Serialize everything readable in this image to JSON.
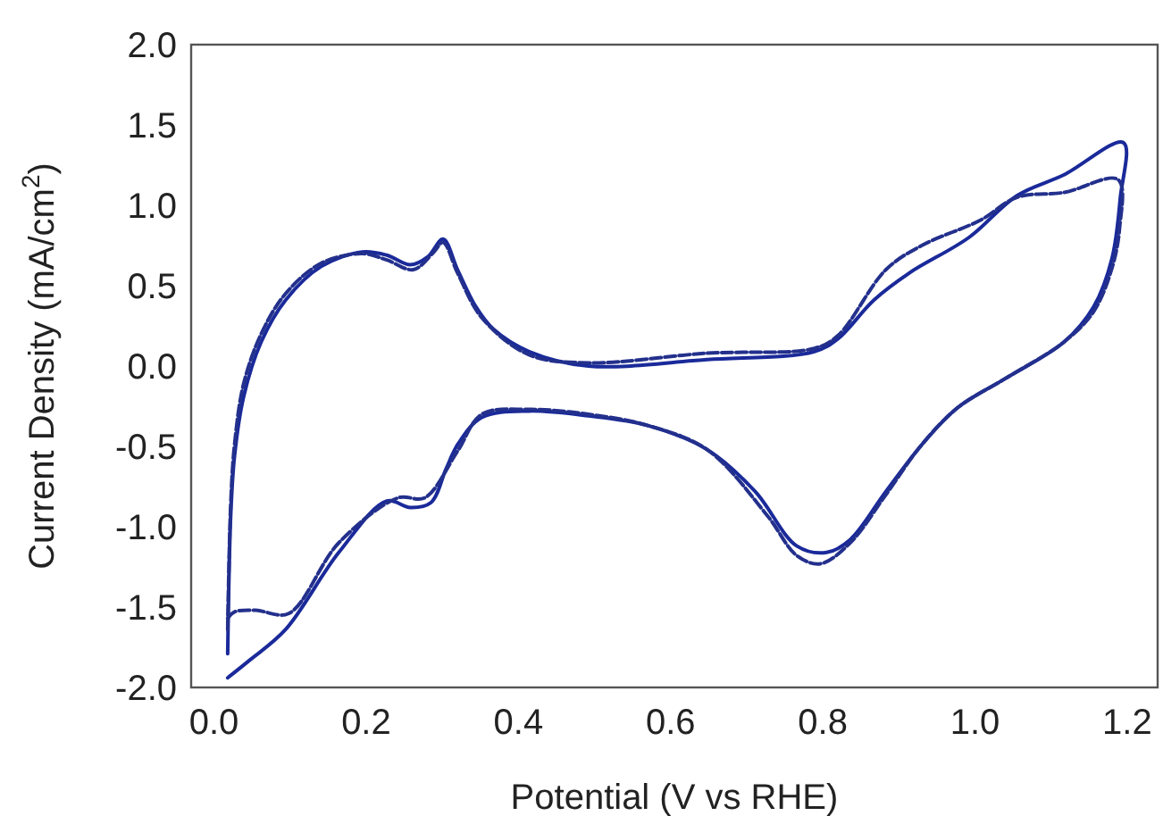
{
  "chart_data": {
    "type": "line",
    "xlabel": "Potential (V vs RHE)",
    "ylabel": "Current Density (mA/cm$^{2}$)",
    "xlim": [
      -0.03,
      1.24
    ],
    "ylim": [
      -2.0,
      2.0
    ],
    "xticks": [
      {
        "value": 0,
        "label": "0.0"
      },
      {
        "value": 0.2,
        "label": "0.2"
      },
      {
        "value": 0.4,
        "label": "0.4"
      },
      {
        "value": 0.6,
        "label": "0.6"
      },
      {
        "value": 0.8,
        "label": "0.8"
      },
      {
        "value": 1.0,
        "label": "1.0"
      },
      {
        "value": 1.2,
        "label": "1.2"
      }
    ],
    "yticks": [
      {
        "value": -2,
        "label": "-2.0"
      },
      {
        "value": -1.5,
        "label": "-1.5"
      },
      {
        "value": -1,
        "label": "-1.0"
      },
      {
        "value": -0.5,
        "label": "-0.5"
      },
      {
        "value": 0,
        "label": "0.0"
      },
      {
        "value": 0.5,
        "label": "0.5"
      },
      {
        "value": 1,
        "label": "1.0"
      },
      {
        "value": 1.5,
        "label": "1.5"
      },
      {
        "value": 2,
        "label": "2.0"
      }
    ],
    "grid": false,
    "marker": "none",
    "series": [
      {
        "color": "#1a2a9a",
        "line_style": "solid",
        "x": [
          0.018,
          0.022,
          0.027,
          0.039,
          0.062,
          0.094,
          0.141,
          0.195,
          0.227,
          0.258,
          0.281,
          0.301,
          0.32,
          0.344,
          0.367,
          0.414,
          0.492,
          0.648,
          0.789,
          0.82,
          0.867,
          0.914,
          0.992,
          1.055,
          1.117,
          1.195,
          1.191,
          1.18,
          1.156,
          1.117,
          1.039,
          0.977,
          0.93,
          0.883,
          0.836,
          0.805,
          0.766,
          0.711,
          0.648,
          0.57,
          0.492,
          0.414,
          0.352,
          0.32,
          0.305,
          0.285,
          0.258,
          0.227,
          0.164,
          0.094,
          0.047,
          0.018
        ],
        "values": [
          -1.79,
          -0.93,
          -0.56,
          -0.19,
          0.15,
          0.41,
          0.62,
          0.71,
          0.69,
          0.63,
          0.68,
          0.79,
          0.6,
          0.37,
          0.23,
          0.09,
          0.0,
          0.04,
          0.09,
          0.17,
          0.41,
          0.58,
          0.8,
          1.06,
          1.19,
          1.39,
          1.05,
          0.67,
          0.37,
          0.15,
          -0.08,
          -0.26,
          -0.49,
          -0.78,
          -1.08,
          -1.16,
          -1.12,
          -0.78,
          -0.52,
          -0.37,
          -0.31,
          -0.28,
          -0.32,
          -0.49,
          -0.64,
          -0.85,
          -0.88,
          -0.84,
          -1.16,
          -1.64,
          -1.83,
          -1.94
        ]
      },
      {
        "color": "#23308c",
        "line_style": "dashed",
        "x": [
          0.018,
          0.022,
          0.027,
          0.039,
          0.062,
          0.094,
          0.141,
          0.195,
          0.227,
          0.262,
          0.289,
          0.301,
          0.32,
          0.352,
          0.414,
          0.492,
          0.648,
          0.789,
          0.82,
          0.883,
          0.93,
          1.008,
          1.055,
          1.117,
          1.188,
          1.19,
          1.18,
          1.156,
          1.117,
          1.039,
          0.977,
          0.93,
          0.883,
          0.836,
          0.797,
          0.766,
          0.727,
          0.648,
          0.57,
          0.492,
          0.414,
          0.352,
          0.32,
          0.277,
          0.242,
          0.164,
          0.098,
          0.055,
          0.027,
          0.018
        ],
        "values": [
          -1.64,
          -0.86,
          -0.49,
          -0.11,
          0.2,
          0.45,
          0.64,
          0.7,
          0.66,
          0.6,
          0.71,
          0.77,
          0.58,
          0.3,
          0.07,
          0.02,
          0.08,
          0.11,
          0.19,
          0.6,
          0.75,
          0.91,
          1.05,
          1.08,
          1.16,
          0.86,
          0.61,
          0.34,
          0.15,
          -0.08,
          -0.26,
          -0.49,
          -0.8,
          -1.1,
          -1.23,
          -1.18,
          -0.93,
          -0.52,
          -0.37,
          -0.3,
          -0.27,
          -0.3,
          -0.53,
          -0.82,
          -0.82,
          -1.1,
          -1.54,
          -1.52,
          -1.53,
          -1.57
        ]
      }
    ]
  }
}
